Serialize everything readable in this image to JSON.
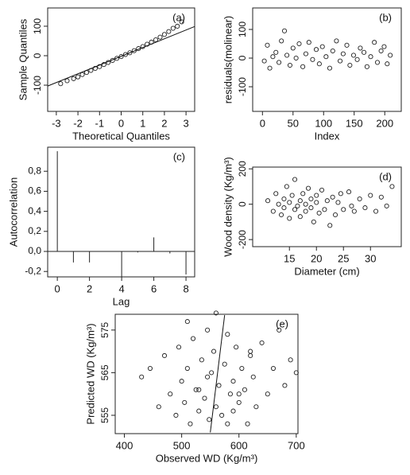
{
  "chart_data": [
    {
      "type": "scatter",
      "annotation": "(a)",
      "xlabel": "Theoretical Quantiles",
      "ylabel": "Sample Quantiles",
      "x": [
        -2.8,
        -2.5,
        -2.2,
        -2,
        -1.8,
        -1.6,
        -1.4,
        -1.2,
        -1,
        -0.8,
        -0.6,
        -0.4,
        -0.2,
        0,
        0.2,
        0.4,
        0.6,
        0.8,
        1,
        1.2,
        1.4,
        1.6,
        1.8,
        2,
        2.2,
        2.4,
        2.6,
        2.8
      ],
      "y": [
        -95,
        -85,
        -78,
        -72,
        -64,
        -57,
        -50,
        -43,
        -37,
        -30,
        -23,
        -16,
        -9,
        -3,
        4,
        10,
        17,
        24,
        31,
        39,
        46,
        54,
        63,
        72,
        82,
        93,
        100,
        115
      ],
      "fit_line": {
        "x": [
          -3.4,
          3.4
        ],
        "y": [
          -103,
          99
        ]
      },
      "xlim": [
        -3.4,
        3.4
      ],
      "ylim": [
        -189,
        162
      ],
      "xticks": [
        -3,
        -2,
        -1,
        0,
        1,
        2,
        3
      ],
      "yticks": [
        -100,
        0,
        100
      ]
    },
    {
      "type": "scatter",
      "annotation": "(b)",
      "xlabel": "Index",
      "ylabel": "residuals(molinear)",
      "x": [
        3,
        8,
        12,
        17,
        22,
        27,
        31,
        36,
        40,
        45,
        50,
        55,
        60,
        66,
        71,
        76,
        82,
        88,
        93,
        98,
        104,
        110,
        115,
        121,
        127,
        132,
        138,
        143,
        149,
        155,
        160,
        166,
        171,
        177,
        183,
        188,
        194,
        199,
        204,
        209
      ],
      "y": [
        -10,
        45,
        -35,
        5,
        20,
        -15,
        60,
        95,
        10,
        -25,
        35,
        0,
        50,
        -30,
        15,
        55,
        -5,
        30,
        -20,
        40,
        5,
        -35,
        25,
        60,
        -10,
        15,
        45,
        -25,
        10,
        -5,
        35,
        20,
        -30,
        5,
        55,
        -15,
        25,
        40,
        -20,
        10
      ],
      "xlim": [
        -16,
        227
      ],
      "ylim": [
        -186,
        175
      ],
      "xticks": [
        0,
        50,
        100,
        150,
        200
      ],
      "yticks": [
        -100,
        0,
        100
      ]
    },
    {
      "type": "acf",
      "annotation": "(c)",
      "xlabel": "Lag",
      "ylabel": "Autocorrelation",
      "x": [
        0,
        1,
        2,
        3,
        4,
        5,
        6,
        7,
        8
      ],
      "values": [
        1,
        -0.11,
        -0.11,
        0,
        -0.25,
        -0.01,
        0.14,
        -0.02,
        -0.23
      ],
      "xlim": [
        -0.6,
        8.54
      ],
      "ylim": [
        -0.254,
        1.04
      ],
      "xticks": [
        0,
        2,
        4,
        6,
        8
      ],
      "yticks": [
        {
          "value": -0.2,
          "label": "-0,2"
        },
        {
          "value": 0,
          "label": "0,0"
        },
        {
          "value": 0.2,
          "label": "0,2"
        },
        {
          "value": 0.4,
          "label": "0,4"
        },
        {
          "value": 0.6,
          "label": "0,6"
        },
        {
          "value": 0.8,
          "label": "0,8"
        }
      ]
    },
    {
      "type": "scatter",
      "annotation": "(d)",
      "xlabel": "Diameter (cm)",
      "ylabel": "Wood density (Kg/m³)",
      "x": [
        11,
        12,
        12.5,
        13,
        13.5,
        14,
        14,
        14.5,
        15,
        15,
        15.5,
        16,
        16,
        16.5,
        17,
        17,
        17.5,
        18,
        18,
        18.5,
        19,
        19,
        19.5,
        20,
        20,
        20.5,
        21,
        21.5,
        22,
        22.5,
        23,
        23.5,
        24,
        24.5,
        25,
        26,
        26.5,
        27,
        28,
        29,
        30,
        31,
        32,
        33,
        34
      ],
      "y": [
        20,
        -40,
        60,
        0,
        -60,
        30,
        -20,
        100,
        -80,
        10,
        50,
        -30,
        140,
        -10,
        20,
        -70,
        60,
        0,
        -40,
        90,
        30,
        -20,
        -100,
        50,
        10,
        -50,
        80,
        -30,
        20,
        -120,
        40,
        -60,
        10,
        60,
        -30,
        70,
        -10,
        -40,
        30,
        -20,
        50,
        -40,
        40,
        -10,
        100
      ],
      "xlim": [
        8.2,
        35.7
      ],
      "ylim": [
        -240,
        210
      ],
      "xticks": [
        15,
        20,
        25,
        30
      ],
      "yticks": [
        -200,
        0,
        200
      ]
    },
    {
      "type": "scatter",
      "annotation": "(e)",
      "xlabel": "Observed WD (Kg/m³)",
      "ylabel": "Predicted WD (Kg/m³)",
      "x": [
        430,
        445,
        460,
        470,
        480,
        490,
        495,
        500,
        505,
        510,
        515,
        520,
        525,
        530,
        535,
        540,
        545,
        548,
        552,
        556,
        560,
        565,
        570,
        575,
        580,
        585,
        590,
        595,
        600,
        605,
        610,
        615,
        620,
        625,
        630,
        640,
        650,
        660,
        670,
        680,
        690,
        700,
        510,
        530,
        560,
        590,
        620,
        600,
        580,
        545
      ],
      "y": [
        564,
        566,
        557,
        569,
        560,
        555,
        571,
        563,
        558,
        566,
        553,
        573,
        561,
        556,
        568,
        559,
        575,
        554,
        565,
        570,
        557,
        562,
        555,
        567,
        574,
        560,
        563,
        571,
        558,
        566,
        561,
        553,
        569,
        564,
        557,
        572,
        560,
        566,
        575,
        562,
        568,
        565,
        577,
        561,
        579,
        556,
        570,
        560,
        553,
        564
      ],
      "fit_line": {
        "x": [
          550,
          575
        ],
        "y": [
          551,
          578.5
        ]
      },
      "xlim": [
        384,
        703
      ],
      "ylim": [
        550.7,
        578.7
      ],
      "xticks": [
        400,
        500,
        600,
        700
      ],
      "yticks": [
        555,
        565,
        575
      ]
    }
  ]
}
